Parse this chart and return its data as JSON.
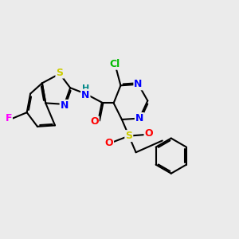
{
  "bg_color": "#ebebeb",
  "bond_color": "#000000",
  "bond_width": 1.5,
  "dbo": 0.055,
  "font_size": 9,
  "colors": {
    "N": "#0000ff",
    "O": "#ff0000",
    "S_thio": "#cccc00",
    "S_sulfonyl": "#cccc00",
    "F": "#ff00ff",
    "Cl": "#00bb00",
    "C": "#000000",
    "H": "#008888"
  }
}
